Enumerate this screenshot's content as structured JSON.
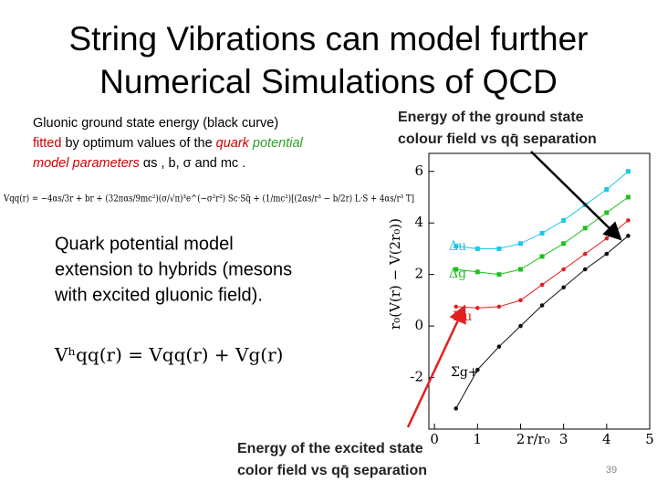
{
  "title": {
    "lines": [
      "String Vibrations can model further",
      "Numerical Simulations of QCD"
    ]
  },
  "description": {
    "line_1": "Gluonic ground state energy (black curve)",
    "line_2": [
      {
        "text": "fitted",
        "color": "#d00000"
      },
      {
        "text": "by optimum values of the",
        "color": "#000000"
      },
      {
        "text": "quark",
        "color": "#d00000"
      },
      {
        "text": "potential",
        "color": "#2e9e2e"
      }
    ],
    "line_3": [
      {
        "text": "model parameters",
        "color": "#d00000"
      },
      {
        "text": "αs",
        "color": "#000000"
      },
      {
        "text": ", b,",
        "color": "#000000"
      },
      {
        "text": "σ and",
        "color": "#000000"
      },
      {
        "text": "mc",
        "color": "#000000"
      },
      {
        "text": ".",
        "color": "#000000"
      }
    ]
  },
  "formula_1": "Vqq(r) = −4αs/3r + br + (32παs/9mc²)(σ/√π)³e^(−σ²r²) Sc·Sq̄ + (1/mc²)[(2αs/r³ − b/2r) L·S + 4αs/r³ T]",
  "hybrid_text": {
    "lines": [
      "Quark potential model",
      "extension to hybrids (mesons",
      "with excited gluonic field)."
    ]
  },
  "formula_2": "Vʰqq(r) = Vqq(r) + Vg(r)",
  "plot": {
    "type": "line",
    "title": [
      "Energy of the ground state",
      "colour field vs qq̄ separation"
    ],
    "xlabel": "r/r₀",
    "ylabel": "r₀(V(r) − V(2r₀))",
    "xlim": [
      -0.13,
      5
    ],
    "ylim": [
      -4,
      6.7
    ],
    "xticks": [
      0,
      1,
      2,
      3,
      4,
      5
    ],
    "yticks": [
      -2,
      0,
      2,
      4,
      6
    ],
    "x": [
      0.5,
      1,
      1.5,
      2,
      2.5,
      3,
      3.5,
      4,
      4.5
    ],
    "series": [
      {
        "name": "Δu",
        "color": "#19c8e6",
        "values": [
          3.1,
          3.0,
          3.0,
          3.2,
          3.6,
          4.1,
          4.7,
          5.3,
          6.0
        ]
      },
      {
        "name": "Δg",
        "color": "#20c020",
        "values": [
          2.2,
          2.1,
          2.0,
          2.2,
          2.7,
          3.2,
          3.8,
          4.4,
          5.0
        ]
      },
      {
        "name": "Πu",
        "color": "#e02020",
        "values": [
          0.75,
          0.7,
          0.75,
          1.0,
          1.6,
          2.2,
          2.8,
          3.4,
          4.1
        ]
      },
      {
        "name": "Σg+",
        "color": "#111111",
        "values": [
          -3.2,
          -1.7,
          -0.8,
          0.0,
          0.8,
          1.5,
          2.2,
          2.8,
          3.5
        ]
      }
    ]
  },
  "bottom_caption": {
    "lines": [
      "Energy of the excited state",
      "color field vs qq̄ separation"
    ]
  },
  "page_number": "39"
}
